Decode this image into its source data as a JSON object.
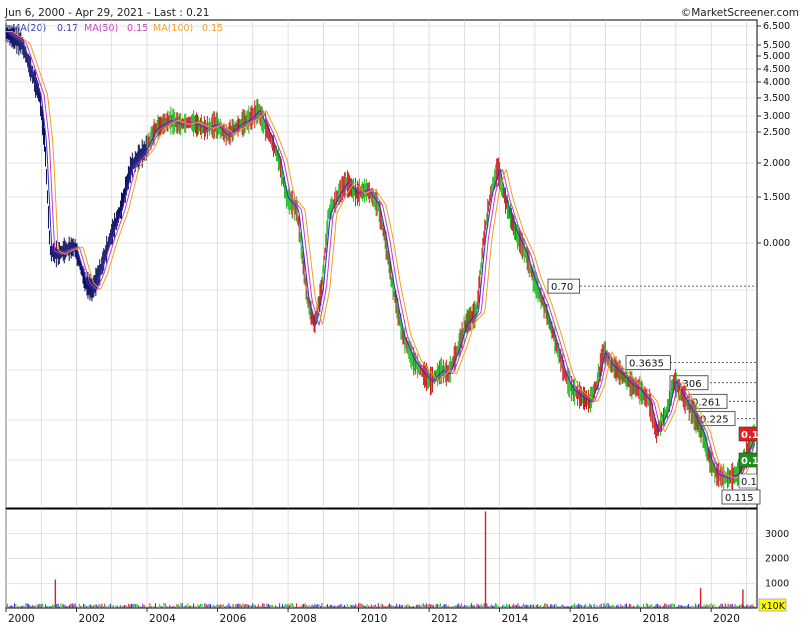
{
  "header": {
    "range_text": "Jun 6, 2000 - Apr 29, 2021 - Last : 0.21",
    "source_text": "©MarketScreener.com"
  },
  "legend": [
    {
      "label": "MA(20)",
      "value": "0.17",
      "color": "#2f33c4"
    },
    {
      "label": "MA(50)",
      "value": "0.15",
      "color": "#c838c8"
    },
    {
      "label": "MA(100)",
      "value": "0.15",
      "color": "#f0a020"
    }
  ],
  "colors": {
    "price_up": "#22bb22",
    "price_down": "#c82020",
    "grid": "#cccccc",
    "frame": "#000000",
    "volume_up": "#22bb22",
    "volume_down": "#cc2222",
    "volume_flat": "#2f33c4",
    "tag_red": "#e41f1f",
    "tag_green": "#1f8f1f",
    "unit_tag": "#ffff00"
  },
  "y_axis_labels": [
    "6.500",
    "5.500",
    "5.000",
    "4.500",
    "4.000",
    "3.500",
    "3.000",
    "2.500",
    "2.000",
    "1.500",
    "0.000"
  ],
  "volume_axis": {
    "labels": [
      "3000",
      "2000",
      "1000"
    ],
    "unit": "x10K"
  },
  "x_axis_labels": [
    "2000",
    "2002",
    "2004",
    "2006",
    "2008",
    "2010",
    "2012",
    "2014",
    "2016",
    "2018",
    "2020"
  ],
  "levels": [
    {
      "label": "0.70",
      "value": 0.7
    },
    {
      "label": "0.3635",
      "value": 0.3635
    },
    {
      "label": "0.306",
      "value": 0.306
    },
    {
      "label": "0.261",
      "value": 0.261
    },
    {
      "label": "0.225",
      "value": 0.225
    },
    {
      "label": "0.115",
      "value": 0.115
    }
  ],
  "right_tags": [
    {
      "label": "0.1",
      "color": "red"
    },
    {
      "label": "0.1",
      "color": "green"
    },
    {
      "label": "0.1",
      "color": "white"
    }
  ],
  "chart_data": {
    "type": "line",
    "title": "Jun 6, 2000 - Apr 29, 2021 - Last : 0.21",
    "x_range": [
      2000.0,
      2021.3
    ],
    "price_labels": [
      "6.500",
      "5.500",
      "5.000",
      "4.500",
      "4.000",
      "3.500",
      "3.000",
      "2.500",
      "2.000",
      "1.500",
      "0.000"
    ],
    "series": [
      {
        "name": "MA(20)",
        "x": [
          2000.0,
          2000.5,
          2001.0,
          2001.15,
          2001.3,
          2001.5,
          2001.7,
          2002.0,
          2002.3,
          2002.5,
          2002.7,
          2003.0,
          2003.3,
          2003.6,
          2004.0,
          2004.3,
          2004.7,
          2005.0,
          2005.3,
          2005.7,
          2006.0,
          2006.3,
          2006.7,
          2007.0,
          2007.2,
          2007.5,
          2007.8,
          2008.0,
          2008.3,
          2008.6,
          2008.8,
          2009.0,
          2009.2,
          2009.5,
          2009.7,
          2010.0,
          2010.3,
          2010.6,
          2010.8,
          2011.0,
          2011.3,
          2011.6,
          2011.9,
          2012.1,
          2012.4,
          2012.6,
          2012.9,
          2013.1,
          2013.4,
          2013.6,
          2013.8,
          2014.0,
          2014.2,
          2014.5,
          2014.8,
          2015.0,
          2015.3,
          2015.6,
          2015.9,
          2016.1,
          2016.4,
          2016.6,
          2016.8,
          2017.0,
          2017.2,
          2017.5,
          2017.8,
          2018.0,
          2018.3,
          2018.5,
          2018.8,
          2019.0,
          2019.2,
          2019.5,
          2019.8,
          2020.0,
          2020.2,
          2020.5,
          2020.8,
          2021.0,
          2021.3
        ],
        "values": [
          6.2,
          5.6,
          3.6,
          2.4,
          0.95,
          0.92,
          0.95,
          0.98,
          0.72,
          0.68,
          0.78,
          1.05,
          1.35,
          1.95,
          2.25,
          2.7,
          2.9,
          2.8,
          2.85,
          2.7,
          2.8,
          2.55,
          2.8,
          2.95,
          3.15,
          2.6,
          2.05,
          1.5,
          1.35,
          0.62,
          0.5,
          0.68,
          1.3,
          1.55,
          1.7,
          1.55,
          1.6,
          1.4,
          1.05,
          0.72,
          0.46,
          0.37,
          0.33,
          0.31,
          0.34,
          0.33,
          0.42,
          0.51,
          0.56,
          1.05,
          1.55,
          1.92,
          1.48,
          1.12,
          0.92,
          0.75,
          0.6,
          0.45,
          0.33,
          0.29,
          0.27,
          0.26,
          0.3,
          0.4,
          0.36,
          0.33,
          0.3,
          0.29,
          0.26,
          0.2,
          0.24,
          0.31,
          0.28,
          0.24,
          0.2,
          0.16,
          0.14,
          0.135,
          0.14,
          0.16,
          0.2
        ]
      },
      {
        "name": "MA(50)",
        "offset": 0.4
      },
      {
        "name": "MA(100)",
        "offset": 0.9
      }
    ],
    "levels": [
      0.7,
      0.3635,
      0.306,
      0.261,
      0.225,
      0.115
    ],
    "last": 0.21,
    "volume": {
      "unit": "x10K",
      "ylim": [
        0,
        4000
      ],
      "spikes": [
        {
          "x": 2001.4,
          "value": 1150
        },
        {
          "x": 2013.6,
          "value": 3900
        },
        {
          "x": 2019.7,
          "value": 800
        },
        {
          "x": 2020.9,
          "value": 750
        }
      ]
    },
    "grid": true,
    "legend_position": "top-left"
  }
}
